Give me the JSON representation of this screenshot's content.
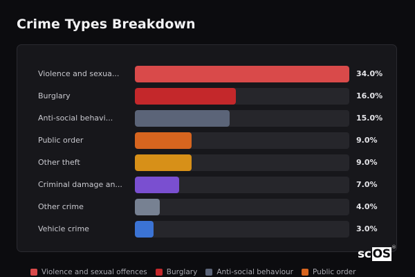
{
  "title": "Crime Types Breakdown",
  "colors": {
    "background": "#0c0c0f",
    "card": "#17171b",
    "track": "#26262b"
  },
  "chart_data": {
    "type": "bar",
    "orientation": "horizontal",
    "title": "",
    "xlabel": "",
    "ylabel": "",
    "xlim": [
      0,
      34
    ],
    "grid": false,
    "legend_position": "bottom",
    "categories": [
      "Violence and sexua...",
      "Burglary",
      "Anti-social behavi...",
      "Public order",
      "Other theft",
      "Criminal damage an...",
      "Other crime",
      "Vehicle crime"
    ],
    "values": [
      34.0,
      16.0,
      15.0,
      9.0,
      9.0,
      7.0,
      4.0,
      3.0
    ],
    "value_labels": [
      "34.0%",
      "16.0%",
      "15.0%",
      "9.0%",
      "9.0%",
      "7.0%",
      "4.0%",
      "3.0%"
    ],
    "colors": [
      "#d94a4a",
      "#c4282b",
      "#5b6478",
      "#d7651f",
      "#d79018",
      "#7a4fd0",
      "#778192",
      "#3b73d4"
    ],
    "legend": [
      {
        "label": "Violence and sexual offences",
        "color": "#d94a4a"
      },
      {
        "label": "Burglary",
        "color": "#c4282b"
      },
      {
        "label": "Anti-social behaviour",
        "color": "#5b6478"
      },
      {
        "label": "Public order",
        "color": "#d7651f"
      }
    ]
  },
  "logo": {
    "prefix": "sc",
    "boxed": "OS",
    "mark": "®"
  }
}
